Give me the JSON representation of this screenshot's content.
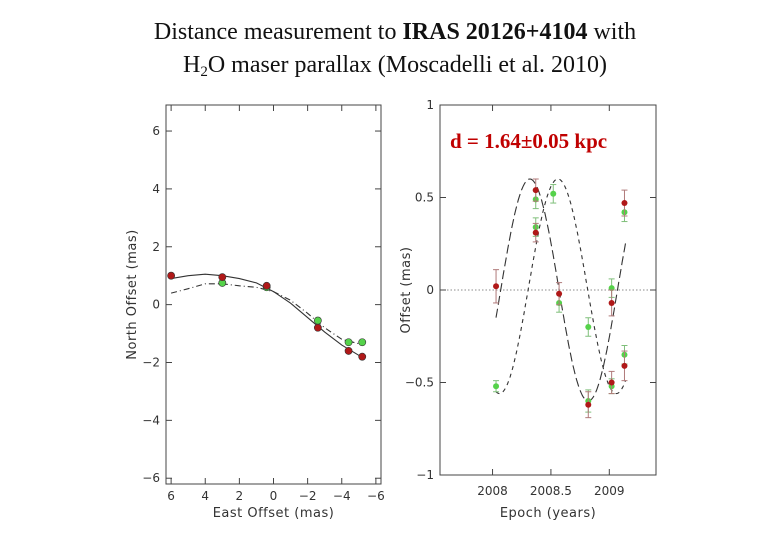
{
  "title": {
    "line1_prefix": "Distance measurement to ",
    "line1_bold": "IRAS 20126+4104",
    "line1_suffix": " with",
    "line2_h": "H",
    "line2_sub": "2",
    "line2_rest": "O maser parallax (Moscadelli et al. 2010)"
  },
  "colors": {
    "red": "#b01818",
    "green": "#55d24a",
    "axis": "#444444"
  },
  "chart_data": [
    {
      "type": "scatter",
      "xlabel": "East Offset (mas)",
      "ylabel": "North Offset (mas)",
      "xlim": [
        6.3,
        -6.3
      ],
      "ylim": [
        -6.2,
        6.9
      ],
      "xticks": [
        6,
        4,
        2,
        0,
        -2,
        -4,
        -6
      ],
      "yticks": [
        6,
        4,
        2,
        0,
        -2,
        -4,
        -6
      ],
      "xtick_labels": [
        "6",
        "4",
        "2",
        "0",
        "−2",
        "−4",
        "−6"
      ],
      "ytick_labels": [
        "6",
        "4",
        "2",
        "0",
        "−2",
        "−4",
        "−6"
      ],
      "series": [
        {
          "name": "red",
          "x": [
            6.0,
            3.0,
            0.4,
            -2.6,
            -4.4,
            -5.2
          ],
          "y": [
            1.0,
            0.95,
            0.65,
            -0.8,
            -1.6,
            -1.8
          ]
        },
        {
          "name": "green",
          "x": [
            3.0,
            0.4,
            -2.6,
            -4.4,
            -5.2
          ],
          "y": [
            0.75,
            0.6,
            -0.55,
            -1.3,
            -1.3
          ]
        }
      ],
      "model_solid": {
        "x": [
          6.0,
          5.0,
          4.0,
          3.0,
          2.0,
          1.0,
          0.0,
          -1.0,
          -2.0,
          -3.0,
          -4.0,
          -5.0,
          -5.2
        ],
        "y": [
          0.9,
          1.0,
          1.05,
          1.0,
          0.9,
          0.75,
          0.45,
          0.05,
          -0.45,
          -0.95,
          -1.4,
          -1.75,
          -1.8
        ]
      },
      "model_dashed": {
        "x": [
          6.0,
          5.0,
          4.0,
          3.0,
          2.0,
          1.0,
          0.0,
          -1.0,
          -2.0,
          -3.0,
          -4.0,
          -5.0,
          -5.2
        ],
        "y": [
          0.4,
          0.55,
          0.72,
          0.72,
          0.65,
          0.6,
          0.45,
          0.15,
          -0.3,
          -0.8,
          -1.2,
          -1.35,
          -1.3
        ]
      }
    },
    {
      "type": "scatter",
      "xlabel": "Epoch (years)",
      "ylabel": "Offset (mas)",
      "annotation": "d = 1.64±0.05 kpc",
      "xlim": [
        2007.55,
        2009.4
      ],
      "ylim": [
        -1.0,
        1.0
      ],
      "xticks": [
        2008,
        2008.5,
        2009
      ],
      "yticks": [
        1,
        0.5,
        0,
        -0.5,
        -1
      ],
      "xtick_labels": [
        "2008",
        "2008.5",
        "2009"
      ],
      "ytick_labels": [
        "1",
        "0.5",
        "0",
        "−0.5",
        "−1"
      ],
      "series": [
        {
          "name": "red",
          "x": [
            2008.03,
            2008.37,
            2008.37,
            2008.57,
            2008.82,
            2009.02,
            2009.02,
            2009.13,
            2009.13
          ],
          "y": [
            0.02,
            0.54,
            0.31,
            -0.02,
            -0.62,
            -0.07,
            -0.5,
            -0.41,
            0.47
          ],
          "err": [
            0.09,
            0.06,
            0.05,
            0.06,
            0.07,
            0.07,
            0.06,
            0.08,
            0.07
          ]
        },
        {
          "name": "green",
          "x": [
            2008.03,
            2008.37,
            2008.37,
            2008.52,
            2008.57,
            2008.82,
            2008.82,
            2009.02,
            2009.02,
            2009.13,
            2009.13
          ],
          "y": [
            -0.52,
            0.49,
            0.34,
            0.52,
            -0.07,
            -0.6,
            -0.2,
            0.01,
            -0.52,
            -0.35,
            0.42
          ],
          "err": [
            0.03,
            0.05,
            0.05,
            0.05,
            0.05,
            0.06,
            0.05,
            0.05,
            0.04,
            0.05,
            0.05
          ]
        }
      ],
      "model_dashed": {
        "mid": 0.02,
        "amp": 0.58,
        "period": 1.0,
        "phase_peak": 2008.56
      },
      "model_longdash": {
        "mid": 0.0,
        "amp": 0.6,
        "period": 1.0,
        "phase_peak": 2008.32
      }
    }
  ]
}
